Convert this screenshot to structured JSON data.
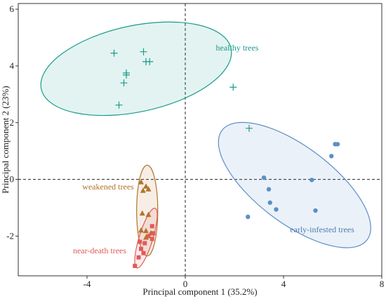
{
  "chart_data": {
    "type": "scatter",
    "xlabel": "Principal component 1 (35.2%)",
    "ylabel": "Principal component 2 (23%)",
    "xlim": [
      -6.8,
      8.0
    ],
    "ylim": [
      -3.4,
      6.2
    ],
    "xticks": [
      -4,
      0,
      4,
      8
    ],
    "yticks": [
      -2,
      0,
      2,
      4,
      6
    ],
    "reference_lines": {
      "x": 0,
      "y": 0,
      "style": "dashed"
    },
    "grid": false,
    "series": [
      {
        "name": "healthy trees",
        "marker": "plus",
        "color": "#1a9c8c",
        "points": [
          [
            -2.9,
            4.45
          ],
          [
            -1.7,
            4.5
          ],
          [
            -1.6,
            4.15
          ],
          [
            -1.45,
            4.15
          ],
          [
            -2.4,
            3.75
          ],
          [
            -2.4,
            3.68
          ],
          [
            -2.5,
            3.4
          ],
          [
            -2.7,
            2.62
          ],
          [
            1.95,
            3.25
          ],
          [
            2.6,
            1.8
          ]
        ],
        "ellipse": {
          "cx": -2.0,
          "cy": 3.9,
          "rx": 3.95,
          "ry": 1.52,
          "angle_deg": -12
        },
        "label_color": "#1a9c8c"
      },
      {
        "name": "early-infested trees",
        "marker": "circle",
        "color": "#5b8fc7",
        "points": [
          [
            6.2,
            1.24
          ],
          [
            6.1,
            1.24
          ],
          [
            5.95,
            0.82
          ],
          [
            3.2,
            0.06
          ],
          [
            5.15,
            -0.02
          ],
          [
            3.4,
            -0.35
          ],
          [
            3.45,
            -0.82
          ],
          [
            3.7,
            -1.06
          ],
          [
            5.3,
            -1.1
          ],
          [
            2.55,
            -1.32
          ]
        ],
        "ellipse": {
          "cx": 4.45,
          "cy": -0.2,
          "rx": 3.7,
          "ry": 1.35,
          "angle_deg": 37
        },
        "label_color": "#4a7eb5"
      },
      {
        "name": "weakened trees",
        "marker": "triangle",
        "color": "#b2742a",
        "points": [
          [
            -1.8,
            -0.1
          ],
          [
            -1.6,
            -0.25
          ],
          [
            -1.72,
            -0.4
          ],
          [
            -1.5,
            -0.35
          ],
          [
            -1.75,
            -1.2
          ],
          [
            -1.5,
            -1.25
          ],
          [
            -1.8,
            -1.8
          ],
          [
            -1.6,
            -1.82
          ],
          [
            -1.4,
            -1.9
          ],
          [
            -1.6,
            -2.05
          ]
        ],
        "ellipse": {
          "cx": -1.55,
          "cy": -1.1,
          "rx": 0.43,
          "ry": 1.6,
          "angle_deg": 0
        },
        "label_color": "#b2742a"
      },
      {
        "name": "near-death trees",
        "marker": "square",
        "color": "#e05a5a",
        "points": [
          [
            -1.35,
            -1.65
          ],
          [
            -1.3,
            -1.9
          ],
          [
            -1.35,
            -2.1
          ],
          [
            -1.5,
            -2.0
          ],
          [
            -1.65,
            -2.25
          ],
          [
            -1.85,
            -2.2
          ],
          [
            -1.8,
            -2.45
          ],
          [
            -1.7,
            -2.6
          ],
          [
            -1.9,
            -2.75
          ],
          [
            -2.05,
            -3.05
          ]
        ],
        "ellipse": {
          "cx": -1.6,
          "cy": -2.07,
          "rx": 0.28,
          "ry": 1.1,
          "angle_deg": 17
        },
        "label_color": "#e05a5a"
      }
    ]
  }
}
